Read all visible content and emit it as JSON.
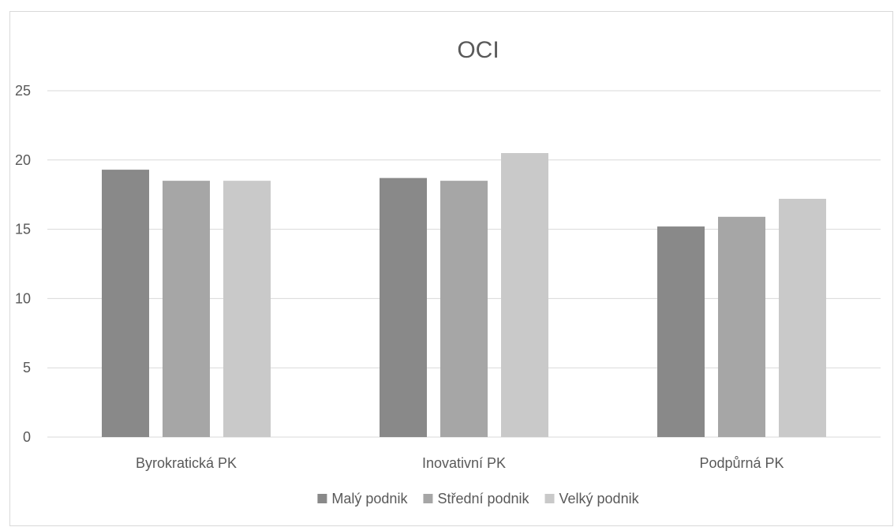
{
  "chart_data": {
    "type": "bar",
    "title": "OCI",
    "xlabel": "",
    "ylabel": "",
    "categories": [
      "Byrokratická PK",
      "Inovativní PK",
      "Podpůrná PK"
    ],
    "series": [
      {
        "name": "Malý podnik",
        "values": [
          19.3,
          18.7,
          15.2
        ],
        "color": "#898989"
      },
      {
        "name": "Střední podnik",
        "values": [
          18.5,
          18.5,
          15.9
        ],
        "color": "#a6a6a6"
      },
      {
        "name": "Velký podnik",
        "values": [
          18.5,
          20.5,
          17.2
        ],
        "color": "#c9c9c9"
      }
    ],
    "ylim": [
      0,
      25
    ],
    "yticks": [
      0,
      5,
      10,
      15,
      20,
      25
    ],
    "grid": true,
    "legend_position": "bottom"
  }
}
